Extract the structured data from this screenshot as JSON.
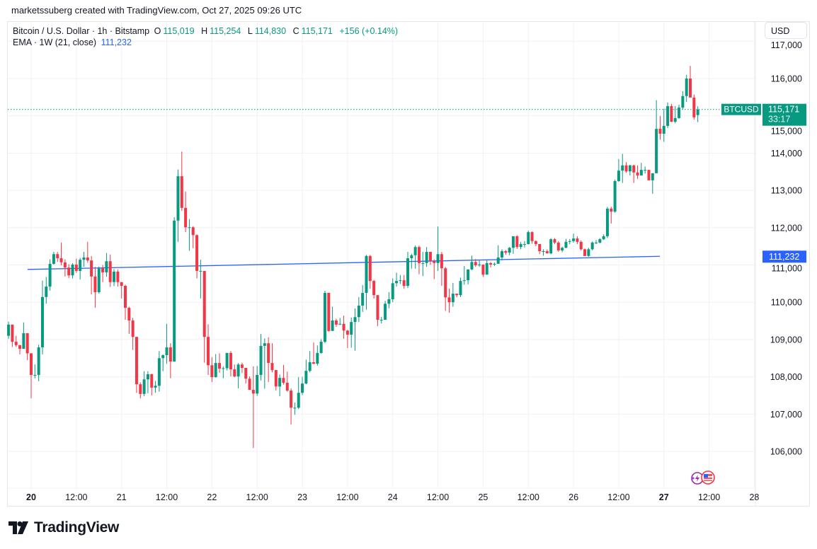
{
  "attribution": "marketssuberg created with TradingView.com, Oct 27, 2025 09:26 UTC",
  "legend": {
    "symbol": "Bitcoin / U.S. Dollar · 1h · Bitstamp",
    "o_label": "O",
    "o": "115,019",
    "h_label": "H",
    "h": "115,254",
    "l_label": "L",
    "l": "114,830",
    "c_label": "C",
    "c": "115,171",
    "change": "+156 (+0.14%)",
    "ema_label": "EMA · 1W (21, close)",
    "ema_value": "111,232"
  },
  "currency_button": "USD",
  "price_tag": {
    "symbol": "BTCUSD",
    "price": "115,171",
    "countdown": "33:17"
  },
  "ema_tag": "111,232",
  "logo_text": "TradingView",
  "colors": {
    "up": "#089981",
    "down": "#f23645",
    "ema": "#2962ff",
    "grid": "#f0f3fa",
    "text": "#131722"
  },
  "icons": [
    "lightning-event-icon",
    "us-flag-icon"
  ],
  "chart_data": {
    "type": "candlestick",
    "interval": "1h",
    "ylim": [
      105300,
      117000
    ],
    "y_ticks": [
      "117,000",
      "116,000",
      "115,000",
      "114,000",
      "113,000",
      "112,000",
      "111,000",
      "110,000",
      "109,000",
      "108,000",
      "107,000",
      "106,000"
    ],
    "y_tick_values": [
      117000,
      116000,
      115000,
      114000,
      113000,
      112000,
      111000,
      110000,
      109000,
      108000,
      107000,
      106000
    ],
    "x_ticks": [
      {
        "label": "20",
        "bold": true
      },
      {
        "label": "12:00"
      },
      {
        "label": "21"
      },
      {
        "label": "12:00"
      },
      {
        "label": "22"
      },
      {
        "label": "12:00"
      },
      {
        "label": "23"
      },
      {
        "label": "12:00"
      },
      {
        "label": "24"
      },
      {
        "label": "12:00"
      },
      {
        "label": "25"
      },
      {
        "label": "12:00"
      },
      {
        "label": "26"
      },
      {
        "label": "12:00"
      },
      {
        "label": "27",
        "bold": true
      },
      {
        "label": "12:00"
      },
      {
        "label": "28"
      }
    ],
    "grid": true,
    "last_price": 115171,
    "ema": {
      "name": "EMA · 1W (21, close)",
      "start": 110880,
      "end": 111232
    },
    "candles_ohlc": [
      [
        109100,
        109480,
        109020,
        109400
      ],
      [
        109400,
        109400,
        108800,
        108940
      ],
      [
        108940,
        109100,
        108800,
        108850
      ],
      [
        108850,
        108850,
        108600,
        108750
      ],
      [
        108750,
        109460,
        108750,
        109170
      ],
      [
        109170,
        109170,
        108450,
        108630
      ],
      [
        108630,
        108630,
        107420,
        108050
      ],
      [
        108050,
        108330,
        107960,
        108050
      ],
      [
        108050,
        108860,
        107880,
        108790
      ],
      [
        108790,
        110580,
        108600,
        110140
      ],
      [
        110140,
        110680,
        109960,
        110420
      ],
      [
        110420,
        111150,
        110310,
        111030
      ],
      [
        111030,
        111350,
        111010,
        111290
      ],
      [
        111290,
        111350,
        111080,
        111180
      ],
      [
        111180,
        111600,
        110990,
        111070
      ],
      [
        111070,
        111150,
        110690,
        110930
      ],
      [
        110930,
        111020,
        110650,
        110720
      ],
      [
        110720,
        111050,
        110640,
        111010
      ],
      [
        111010,
        111170,
        110790,
        110840
      ],
      [
        110840,
        111190,
        110610,
        111140
      ],
      [
        111140,
        111350,
        110950,
        111200
      ],
      [
        111200,
        111620,
        111060,
        111120
      ],
      [
        111120,
        111240,
        110210,
        110690
      ],
      [
        110690,
        110950,
        109850,
        110270
      ],
      [
        110270,
        110960,
        110230,
        110910
      ],
      [
        110910,
        111000,
        110540,
        110800
      ],
      [
        110800,
        111320,
        110680,
        111100
      ],
      [
        111100,
        111280,
        110410,
        110540
      ],
      [
        110540,
        110890,
        110430,
        110820
      ],
      [
        110820,
        110880,
        110420,
        110540
      ],
      [
        110540,
        110540,
        110100,
        110440
      ],
      [
        110440,
        110470,
        109530,
        109850
      ],
      [
        109850,
        109880,
        109150,
        109510
      ],
      [
        109510,
        109580,
        108720,
        109070
      ],
      [
        109070,
        109070,
        107570,
        107800
      ],
      [
        107800,
        107850,
        107420,
        107540
      ],
      [
        107540,
        108150,
        107480,
        107930
      ],
      [
        107930,
        108150,
        107560,
        108070
      ],
      [
        108070,
        108080,
        107500,
        107710
      ],
      [
        107710,
        107890,
        107570,
        107760
      ],
      [
        107760,
        108690,
        107600,
        108500
      ],
      [
        108500,
        108600,
        108150,
        108580
      ],
      [
        108580,
        109420,
        108350,
        108790
      ],
      [
        108790,
        108900,
        107960,
        108410
      ],
      [
        108410,
        112280,
        108410,
        112190
      ],
      [
        112190,
        113560,
        111620,
        113380
      ],
      [
        113380,
        114040,
        112450,
        112530
      ],
      [
        112530,
        112970,
        111880,
        112010
      ],
      [
        112010,
        112230,
        111380,
        112010
      ],
      [
        112010,
        112040,
        111450,
        111800
      ],
      [
        111800,
        111820,
        110640,
        110840
      ],
      [
        110840,
        111140,
        110100,
        110840
      ],
      [
        110840,
        110840,
        108380,
        109070
      ],
      [
        109070,
        109410,
        108050,
        108310
      ],
      [
        108310,
        108530,
        107860,
        107990
      ],
      [
        107990,
        108610,
        107980,
        108370
      ],
      [
        108370,
        108630,
        108110,
        108220
      ],
      [
        108220,
        108280,
        107960,
        108230
      ],
      [
        108230,
        108640,
        108170,
        108640
      ],
      [
        108640,
        108690,
        108010,
        108200
      ],
      [
        108200,
        108330,
        107990,
        108010
      ],
      [
        108010,
        108370,
        107690,
        108330
      ],
      [
        108330,
        108380,
        108100,
        108240
      ],
      [
        108240,
        108240,
        107820,
        107950
      ],
      [
        107950,
        108010,
        107650,
        107650
      ],
      [
        107650,
        108280,
        106090,
        107550
      ],
      [
        107550,
        108290,
        107490,
        108050
      ],
      [
        108050,
        109150,
        107900,
        108830
      ],
      [
        108830,
        109030,
        107680,
        108900
      ],
      [
        108900,
        109060,
        107860,
        108370
      ],
      [
        108370,
        108900,
        108120,
        108180
      ],
      [
        108180,
        108180,
        107630,
        107740
      ],
      [
        107740,
        108060,
        107480,
        107970
      ],
      [
        107970,
        108320,
        107790,
        107840
      ],
      [
        107840,
        108140,
        107600,
        107630
      ],
      [
        107630,
        107690,
        106720,
        107170
      ],
      [
        107170,
        107310,
        106980,
        107170
      ],
      [
        107170,
        107990,
        107130,
        107570
      ],
      [
        107570,
        108000,
        107510,
        107820
      ],
      [
        107820,
        108460,
        107800,
        108160
      ],
      [
        108160,
        108690,
        108120,
        108390
      ],
      [
        108390,
        108920,
        108340,
        108350
      ],
      [
        108350,
        108840,
        108300,
        108640
      ],
      [
        108640,
        109010,
        108620,
        108940
      ],
      [
        108940,
        110310,
        108900,
        110250
      ],
      [
        110250,
        110250,
        109210,
        109230
      ],
      [
        109230,
        109880,
        109230,
        109510
      ],
      [
        109510,
        109560,
        109340,
        109400
      ],
      [
        109400,
        109580,
        109390,
        109420
      ],
      [
        109420,
        109640,
        109020,
        109240
      ],
      [
        109240,
        109260,
        108770,
        109130
      ],
      [
        109130,
        109590,
        108780,
        109470
      ],
      [
        109470,
        109830,
        108700,
        109600
      ],
      [
        109600,
        110140,
        109470,
        109910
      ],
      [
        109910,
        110460,
        109740,
        110250
      ],
      [
        110250,
        111270,
        109800,
        111240
      ],
      [
        111240,
        111270,
        110360,
        110570
      ],
      [
        110570,
        110600,
        110100,
        110190
      ],
      [
        110190,
        110190,
        109360,
        109530
      ],
      [
        109530,
        109610,
        109430,
        109530
      ],
      [
        109530,
        110040,
        109530,
        109960
      ],
      [
        109960,
        110270,
        109840,
        110080
      ],
      [
        110080,
        110640,
        110000,
        110510
      ],
      [
        110510,
        110790,
        110420,
        110570
      ],
      [
        110570,
        110730,
        110490,
        110590
      ],
      [
        110590,
        110730,
        110360,
        110440
      ],
      [
        110440,
        111350,
        110380,
        111180
      ],
      [
        111180,
        111300,
        110900,
        111260
      ],
      [
        111260,
        111520,
        110900,
        111480
      ],
      [
        111480,
        111520,
        110750,
        111050
      ],
      [
        111050,
        111350,
        110700,
        111050
      ],
      [
        111050,
        111480,
        110950,
        111350
      ],
      [
        111350,
        111350,
        111000,
        111100
      ],
      [
        111100,
        111150,
        110620,
        111050
      ],
      [
        111050,
        112030,
        110840,
        111290
      ],
      [
        111290,
        111350,
        110440,
        110910
      ],
      [
        110910,
        110950,
        109770,
        110130
      ],
      [
        110130,
        110370,
        109720,
        110000
      ],
      [
        110000,
        110520,
        109880,
        110230
      ],
      [
        110230,
        110230,
        110130,
        110190
      ],
      [
        110190,
        110660,
        110140,
        110570
      ],
      [
        110570,
        110970,
        110470,
        110590
      ],
      [
        110590,
        110880,
        110480,
        110880
      ],
      [
        110880,
        111250,
        110860,
        111080
      ],
      [
        111080,
        111160,
        110950,
        110990
      ],
      [
        110990,
        111120,
        110950,
        111010
      ],
      [
        111010,
        111010,
        110680,
        110740
      ],
      [
        110740,
        111120,
        110740,
        111050
      ],
      [
        111050,
        111080,
        110930,
        111010
      ],
      [
        111010,
        111070,
        110970,
        111030
      ],
      [
        111030,
        111530,
        111030,
        111200
      ],
      [
        111200,
        111420,
        111120,
        111370
      ],
      [
        111370,
        111400,
        111270,
        111330
      ],
      [
        111330,
        111480,
        111260,
        111460
      ],
      [
        111460,
        111770,
        111300,
        111770
      ],
      [
        111770,
        111800,
        111430,
        111480
      ],
      [
        111480,
        111620,
        111420,
        111560
      ],
      [
        111560,
        111640,
        111470,
        111560
      ],
      [
        111560,
        111920,
        111550,
        111880
      ],
      [
        111880,
        111900,
        111570,
        111640
      ],
      [
        111640,
        111660,
        111500,
        111560
      ],
      [
        111560,
        111560,
        111290,
        111370
      ],
      [
        111370,
        111420,
        111250,
        111370
      ],
      [
        111370,
        111420,
        111310,
        111310
      ],
      [
        111310,
        111720,
        111290,
        111690
      ],
      [
        111690,
        111720,
        111560,
        111600
      ],
      [
        111600,
        111640,
        111350,
        111390
      ],
      [
        111390,
        111490,
        111340,
        111460
      ],
      [
        111460,
        111700,
        111450,
        111620
      ],
      [
        111620,
        111690,
        111560,
        111640
      ],
      [
        111640,
        111840,
        111600,
        111710
      ],
      [
        111710,
        111770,
        111560,
        111620
      ],
      [
        111620,
        111660,
        111390,
        111420
      ],
      [
        111420,
        111440,
        111240,
        111240
      ],
      [
        111240,
        111460,
        111220,
        111420
      ],
      [
        111420,
        111630,
        111390,
        111600
      ],
      [
        111600,
        111670,
        111560,
        111600
      ],
      [
        111600,
        111720,
        111580,
        111690
      ],
      [
        111690,
        111820,
        111670,
        111770
      ],
      [
        111770,
        112560,
        111720,
        112510
      ],
      [
        112510,
        112560,
        112110,
        112430
      ],
      [
        112430,
        113290,
        112400,
        113250
      ],
      [
        113250,
        113840,
        113230,
        113530
      ],
      [
        113530,
        113980,
        113200,
        113670
      ],
      [
        113670,
        113760,
        113470,
        113510
      ],
      [
        113510,
        113690,
        113400,
        113670
      ],
      [
        113670,
        113690,
        113200,
        113480
      ],
      [
        113480,
        113670,
        113310,
        113400
      ],
      [
        113400,
        113740,
        113400,
        113550
      ],
      [
        113550,
        113640,
        113450,
        113550
      ],
      [
        113550,
        113550,
        113270,
        113270
      ],
      [
        113270,
        113460,
        112910,
        113460
      ],
      [
        113460,
        115420,
        113460,
        114650
      ],
      [
        114650,
        115000,
        114360,
        114520
      ],
      [
        114520,
        115190,
        114300,
        114730
      ],
      [
        114730,
        115360,
        114670,
        115260
      ],
      [
        115260,
        115320,
        114830,
        114840
      ],
      [
        114840,
        115260,
        114800,
        114940
      ],
      [
        114940,
        115300,
        114920,
        115220
      ],
      [
        115220,
        115660,
        115170,
        115530
      ],
      [
        115530,
        116100,
        115370,
        116000
      ],
      [
        116000,
        116340,
        115500,
        115490
      ],
      [
        115490,
        115570,
        114900,
        114960
      ],
      [
        115019,
        115254,
        114830,
        115171
      ]
    ]
  }
}
